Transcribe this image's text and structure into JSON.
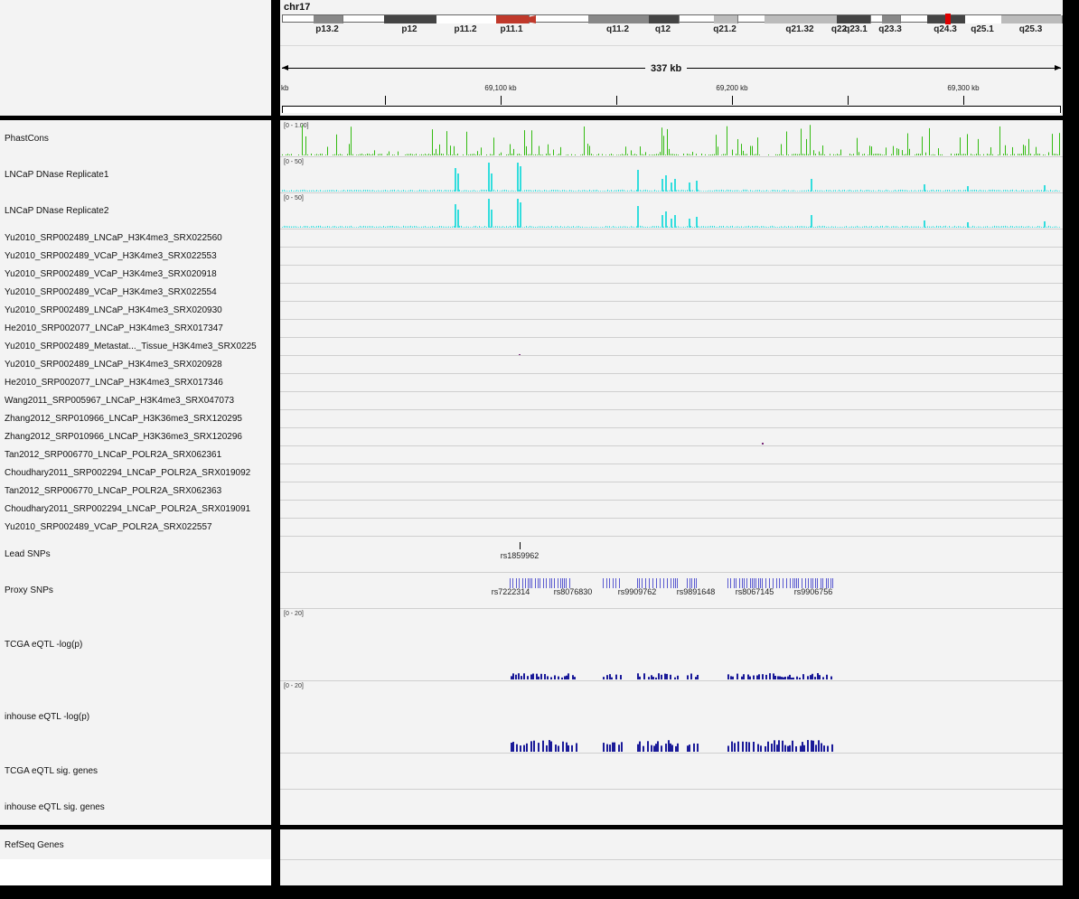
{
  "ideogram": {
    "chromosome": "chr17",
    "bands": [
      {
        "name": "p13.2",
        "color": "#888888"
      },
      {
        "name": "p12",
        "color": "#444444"
      },
      {
        "name": "p11.2",
        "color": "#ffffff"
      },
      {
        "name": "p11.1",
        "color": "#c0392b"
      },
      {
        "name": "q11.2",
        "color": "#888888"
      },
      {
        "name": "q12",
        "color": "#444444"
      },
      {
        "name": "q21.2",
        "color": "#bbbbbb"
      },
      {
        "name": "q21.32",
        "color": "#bbbbbb"
      },
      {
        "name": "q22",
        "color": "#444444"
      },
      {
        "name": "q23.1",
        "color": "#444444"
      },
      {
        "name": "q23.3",
        "color": "#888888"
      },
      {
        "name": "q24.3",
        "color": "#444444"
      },
      {
        "name": "q25.1",
        "color": "#ffffff"
      },
      {
        "name": "q25.3",
        "color": "#bbbbbb"
      }
    ],
    "span_label": "337 kb",
    "ruler_ticks": [
      "69,100 kb",
      "69,200 kb",
      "69,300 kb"
    ],
    "ruler_left_stub": "kb"
  },
  "tracks": {
    "phastcons": {
      "name": "PhastCons",
      "range": "[0 - 1.00]",
      "color": "#33bb11"
    },
    "dnase1": {
      "name": "LNCaP DNase Replicate1",
      "range": "[0 - 50]",
      "color": "#33dddd"
    },
    "dnase2": {
      "name": "LNCaP DNase Replicate2",
      "range": "[0 - 50]",
      "color": "#33dddd"
    },
    "chip": [
      "Yu2010_SRP002489_LNCaP_H3K4me3_SRX022560",
      "Yu2010_SRP002489_VCaP_H3K4me3_SRX022553",
      "Yu2010_SRP002489_VCaP_H3K4me3_SRX020918",
      "Yu2010_SRP002489_VCaP_H3K4me3_SRX022554",
      "Yu2010_SRP002489_LNCaP_H3K4me3_SRX020930",
      "He2010_SRP002077_LNCaP_H3K4me3_SRX017347",
      "Yu2010_SRP002489_Metastat..._Tissue_H3K4me3_SRX0225",
      "Yu2010_SRP002489_LNCaP_H3K4me3_SRX020928",
      "He2010_SRP002077_LNCaP_H3K4me3_SRX017346",
      "Wang2011_SRP005967_LNCaP_H3K4me3_SRX047073",
      "Zhang2012_SRP010966_LNCaP_H3K36me3_SRX120295",
      "Zhang2012_SRP010966_LNCaP_H3K36me3_SRX120296",
      "Tan2012_SRP006770_LNCaP_POLR2A_SRX062361",
      "Choudhary2011_SRP002294_LNCaP_POLR2A_SRX019092",
      "Tan2012_SRP006770_LNCaP_POLR2A_SRX062363",
      "Choudhary2011_SRP002294_LNCaP_POLR2A_SRX019091",
      "Yu2010_SRP002489_VCaP_POLR2A_SRX022557"
    ],
    "lead_snps": {
      "name": "Lead SNPs",
      "snp": "rs1859962"
    },
    "proxy_snps": {
      "name": "Proxy SNPs",
      "labels": [
        "rs7222314",
        "rs8076830",
        "rs9909762",
        "rs9891648",
        "rs8067145",
        "rs9906756"
      ]
    },
    "tcga_eqtl": {
      "name": "TCGA eQTL -log(p)",
      "range": "[0 - 20]",
      "color": "#1a1a99"
    },
    "inhouse_eqtl": {
      "name": "inhouse eQTL -log(p)",
      "range": "[0 - 20]",
      "color": "#1a1a99"
    },
    "tcga_sig": {
      "name": "TCGA eQTL sig. genes"
    },
    "inhouse_sig": {
      "name": "inhouse eQTL sig. genes"
    }
  },
  "refseq": {
    "name": "RefSeq Genes"
  }
}
